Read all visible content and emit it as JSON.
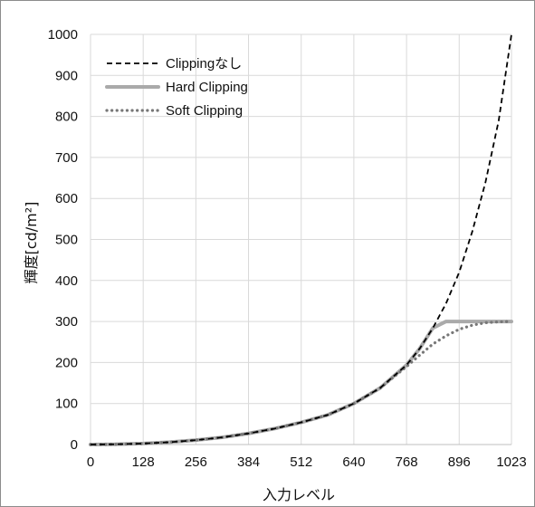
{
  "chart_data": {
    "type": "line",
    "xlabel": "入力レベル",
    "ylabel": "輝度[cd/m²]",
    "xlim": [
      0,
      1023
    ],
    "ylim": [
      0,
      1000
    ],
    "xticks": [
      "0",
      "128",
      "256",
      "384",
      "512",
      "640",
      "768",
      "896",
      "1023"
    ],
    "yticks": [
      "0",
      "100",
      "200",
      "300",
      "400",
      "500",
      "600",
      "700",
      "800",
      "900",
      "1000"
    ],
    "x": [
      0,
      64,
      128,
      192,
      256,
      320,
      384,
      448,
      512,
      576,
      640,
      704,
      768,
      800,
      832,
      864,
      896,
      928,
      960,
      992,
      1023
    ],
    "grid": true,
    "legend_position": "top-left",
    "series": [
      {
        "name": "Clippingなし",
        "style": "dashed",
        "color": "#000000",
        "values": [
          0,
          0.7,
          2.4,
          5.7,
          10.7,
          17.5,
          27,
          39,
          54,
          72,
          100,
          138,
          194,
          234,
          284,
          344,
          420,
          520,
          640,
          790,
          1000
        ]
      },
      {
        "name": "Hard Clipping",
        "style": "solid-thick",
        "color": "#aaaaaa",
        "values": [
          0,
          0.7,
          2.4,
          5.7,
          10.7,
          17.5,
          27,
          39,
          54,
          72,
          100,
          138,
          194,
          234,
          284,
          300,
          300,
          300,
          300,
          300,
          300
        ]
      },
      {
        "name": "Soft Clipping",
        "style": "dotted",
        "color": "#777777",
        "values": [
          0,
          0.7,
          2.4,
          5.7,
          10.7,
          17.5,
          27,
          39,
          54,
          72,
          100,
          138,
          190,
          218,
          245,
          265,
          281,
          291,
          297,
          299,
          300
        ]
      }
    ]
  }
}
